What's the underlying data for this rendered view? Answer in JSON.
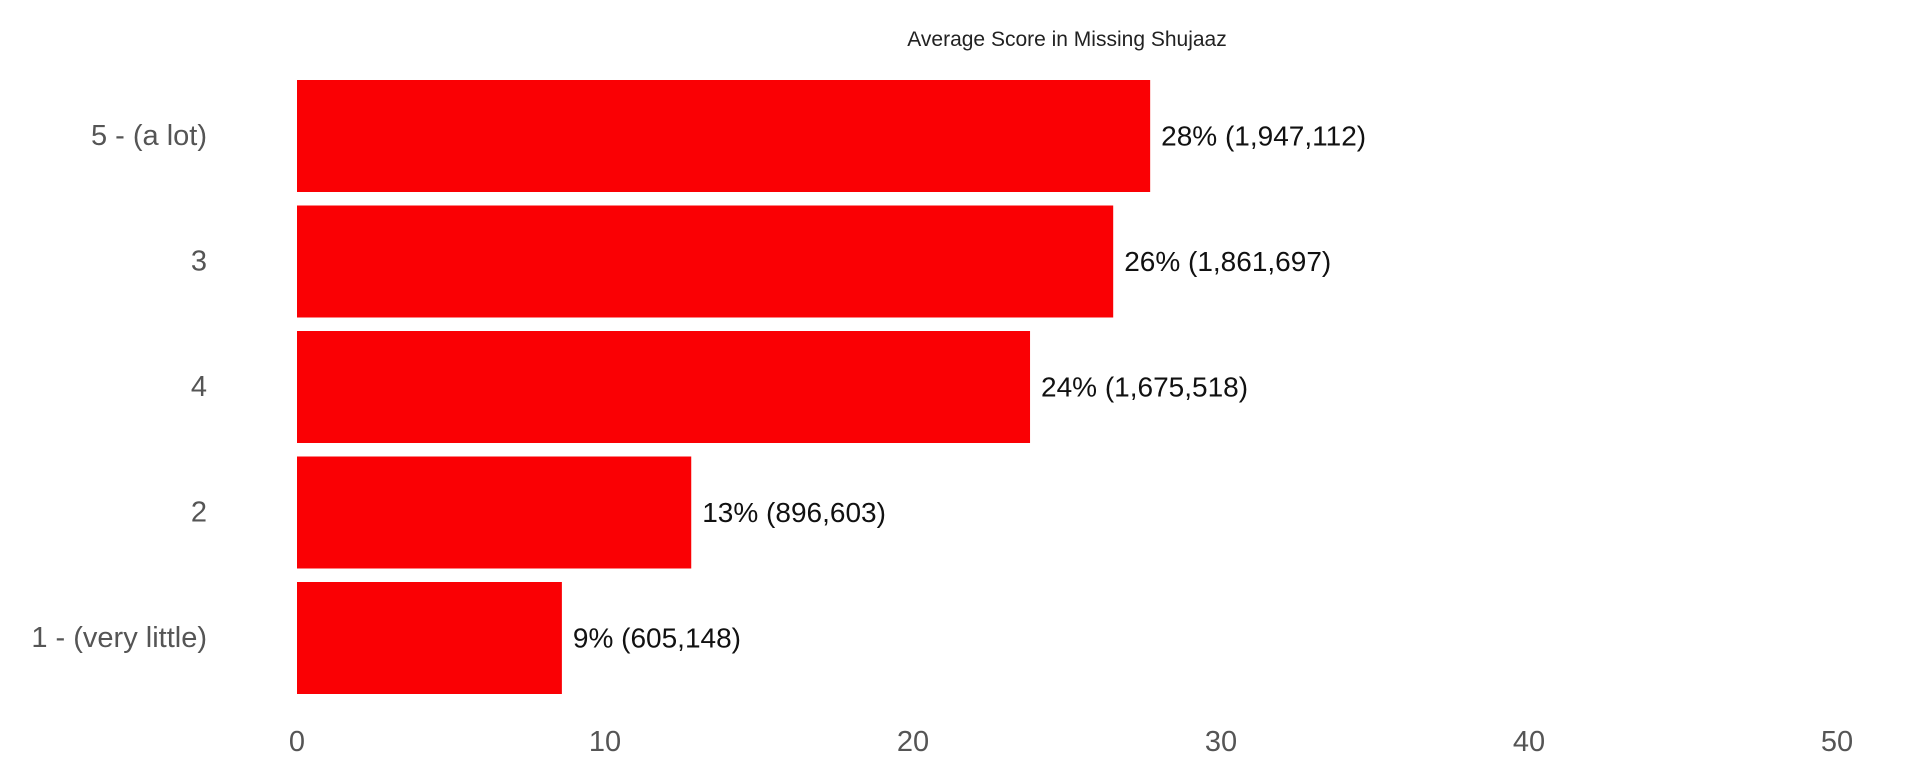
{
  "chart_data": {
    "type": "bar",
    "orientation": "horizontal",
    "title": "Average Score in Missing Shujaaz",
    "xlabel": "",
    "ylabel": "",
    "xlim": [
      0,
      50
    ],
    "x_ticks": [
      "0",
      "10",
      "20",
      "30",
      "40",
      "50"
    ],
    "grid": false,
    "legend": "none",
    "bar_color": "#fa0004",
    "categories": [
      "5 -  (a lot)",
      "3",
      "4",
      "2",
      "1 - (very little)"
    ],
    "values": [
      27.7,
      26.5,
      23.8,
      12.8,
      8.6
    ],
    "data_labels": [
      "28% (1,947,112)",
      "26% (1,861,697)",
      "24% (1,675,518)",
      "13% (896,603)",
      "9% (605,148)"
    ]
  }
}
